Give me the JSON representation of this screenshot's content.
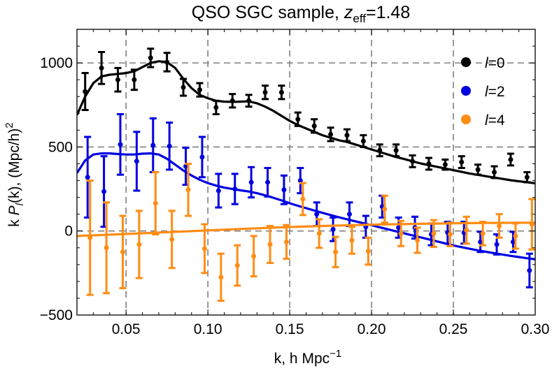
{
  "chart_data": {
    "type": "scatter",
    "title": {
      "prefix": "QSO SGC sample, ",
      "var": "z",
      "sub": "eff",
      "suffix": "=1.48"
    },
    "xlabel": {
      "main": "k, h Mpc",
      "sup": "−1"
    },
    "ylabel": {
      "k": "k ",
      "p": "P",
      "sub": "l",
      "rest": "(k), (Mpc/h)",
      "sup": "2"
    },
    "xlim": [
      0.02,
      0.3
    ],
    "ylim": [
      -500,
      1200
    ],
    "xticks": [
      "0.05",
      "0.10",
      "0.15",
      "0.20",
      "0.25",
      "0.30"
    ],
    "xtick_values": [
      0.05,
      0.1,
      0.15,
      0.2,
      0.25,
      0.3
    ],
    "yticks": [
      "−500",
      "0",
      "500",
      "1000"
    ],
    "ytick_values": [
      -500,
      0,
      500,
      1000
    ],
    "grid": "dashed at major ticks",
    "legend": {
      "placement": "top-right",
      "entries": [
        {
          "letter": "l",
          "rest": "=0",
          "color": "#000000"
        },
        {
          "letter": "l",
          "rest": "=2",
          "color": "#0000e0"
        },
        {
          "letter": "l",
          "rest": "=4",
          "color": "#ff8c14"
        }
      ]
    },
    "series": [
      {
        "color": "#000000",
        "points": [
          {
            "x": 0.025,
            "y": 830,
            "err": 110
          },
          {
            "x": 0.035,
            "y": 970,
            "err": 95
          },
          {
            "x": 0.045,
            "y": 900,
            "err": 70
          },
          {
            "x": 0.055,
            "y": 900,
            "err": 60
          },
          {
            "x": 0.065,
            "y": 1030,
            "err": 55
          },
          {
            "x": 0.075,
            "y": 1005,
            "err": 55
          },
          {
            "x": 0.085,
            "y": 855,
            "err": 50
          },
          {
            "x": 0.095,
            "y": 840,
            "err": 40
          },
          {
            "x": 0.105,
            "y": 735,
            "err": 40
          },
          {
            "x": 0.115,
            "y": 775,
            "err": 40
          },
          {
            "x": 0.125,
            "y": 775,
            "err": 35
          },
          {
            "x": 0.135,
            "y": 825,
            "err": 40
          },
          {
            "x": 0.145,
            "y": 825,
            "err": 40
          },
          {
            "x": 0.155,
            "y": 665,
            "err": 40
          },
          {
            "x": 0.165,
            "y": 625,
            "err": 40
          },
          {
            "x": 0.175,
            "y": 575,
            "err": 40
          },
          {
            "x": 0.185,
            "y": 570,
            "err": 35
          },
          {
            "x": 0.195,
            "y": 535,
            "err": 35
          },
          {
            "x": 0.205,
            "y": 480,
            "err": 35
          },
          {
            "x": 0.215,
            "y": 480,
            "err": 35
          },
          {
            "x": 0.225,
            "y": 415,
            "err": 35
          },
          {
            "x": 0.235,
            "y": 400,
            "err": 35
          },
          {
            "x": 0.245,
            "y": 395,
            "err": 30
          },
          {
            "x": 0.255,
            "y": 410,
            "err": 35
          },
          {
            "x": 0.265,
            "y": 365,
            "err": 30
          },
          {
            "x": 0.275,
            "y": 350,
            "err": 35
          },
          {
            "x": 0.285,
            "y": 425,
            "err": 35
          },
          {
            "x": 0.295,
            "y": 320,
            "err": 30
          }
        ],
        "curve": [
          [
            0.02,
            690
          ],
          [
            0.025,
            800
          ],
          [
            0.03,
            880
          ],
          [
            0.035,
            920
          ],
          [
            0.04,
            930
          ],
          [
            0.045,
            935
          ],
          [
            0.05,
            940
          ],
          [
            0.055,
            950
          ],
          [
            0.06,
            975
          ],
          [
            0.065,
            1000
          ],
          [
            0.07,
            1010
          ],
          [
            0.075,
            1005
          ],
          [
            0.08,
            970
          ],
          [
            0.085,
            905
          ],
          [
            0.09,
            850
          ],
          [
            0.095,
            810
          ],
          [
            0.1,
            790
          ],
          [
            0.105,
            775
          ],
          [
            0.11,
            770
          ],
          [
            0.115,
            768
          ],
          [
            0.12,
            770
          ],
          [
            0.125,
            772
          ],
          [
            0.13,
            760
          ],
          [
            0.135,
            740
          ],
          [
            0.14,
            715
          ],
          [
            0.145,
            685
          ],
          [
            0.15,
            655
          ],
          [
            0.155,
            630
          ],
          [
            0.16,
            610
          ],
          [
            0.165,
            590
          ],
          [
            0.17,
            570
          ],
          [
            0.175,
            555
          ],
          [
            0.18,
            540
          ],
          [
            0.185,
            530
          ],
          [
            0.19,
            515
          ],
          [
            0.195,
            500
          ],
          [
            0.2,
            485
          ],
          [
            0.205,
            470
          ],
          [
            0.21,
            455
          ],
          [
            0.215,
            440
          ],
          [
            0.22,
            428
          ],
          [
            0.225,
            415
          ],
          [
            0.23,
            402
          ],
          [
            0.235,
            392
          ],
          [
            0.24,
            382
          ],
          [
            0.245,
            372
          ],
          [
            0.25,
            362
          ],
          [
            0.255,
            352
          ],
          [
            0.26,
            342
          ],
          [
            0.265,
            334
          ],
          [
            0.27,
            326
          ],
          [
            0.275,
            318
          ],
          [
            0.28,
            310
          ],
          [
            0.285,
            302
          ],
          [
            0.29,
            296
          ],
          [
            0.295,
            290
          ],
          [
            0.3,
            284
          ]
        ]
      },
      {
        "color": "#0000e0",
        "points": [
          {
            "x": 0.025,
            "y": 320,
            "err": 240
          },
          {
            "x": 0.035,
            "y": 235,
            "err": 210
          },
          {
            "x": 0.045,
            "y": 515,
            "err": 180
          },
          {
            "x": 0.055,
            "y": 415,
            "err": 175
          },
          {
            "x": 0.065,
            "y": 510,
            "err": 160
          },
          {
            "x": 0.075,
            "y": 505,
            "err": 140
          },
          {
            "x": 0.085,
            "y": 385,
            "err": 110
          },
          {
            "x": 0.095,
            "y": 440,
            "err": 120
          },
          {
            "x": 0.105,
            "y": 240,
            "err": 100
          },
          {
            "x": 0.115,
            "y": 250,
            "err": 90
          },
          {
            "x": 0.125,
            "y": 290,
            "err": 90
          },
          {
            "x": 0.135,
            "y": 290,
            "err": 85
          },
          {
            "x": 0.145,
            "y": 245,
            "err": 85
          },
          {
            "x": 0.155,
            "y": 300,
            "err": 75
          },
          {
            "x": 0.165,
            "y": 100,
            "err": 70
          },
          {
            "x": 0.175,
            "y": 10,
            "err": 70
          },
          {
            "x": 0.185,
            "y": 100,
            "err": 70
          },
          {
            "x": 0.195,
            "y": 25,
            "err": 65
          },
          {
            "x": 0.205,
            "y": 145,
            "err": 65
          },
          {
            "x": 0.215,
            "y": 20,
            "err": 60
          },
          {
            "x": 0.225,
            "y": 20,
            "err": 65
          },
          {
            "x": 0.235,
            "y": -20,
            "err": 65
          },
          {
            "x": 0.245,
            "y": -10,
            "err": 65
          },
          {
            "x": 0.255,
            "y": -10,
            "err": 65
          },
          {
            "x": 0.265,
            "y": -65,
            "err": 60
          },
          {
            "x": 0.275,
            "y": -80,
            "err": 60
          },
          {
            "x": 0.285,
            "y": -65,
            "err": 60
          },
          {
            "x": 0.295,
            "y": -235,
            "err": 100
          }
        ],
        "curve": [
          [
            0.02,
            345
          ],
          [
            0.025,
            420
          ],
          [
            0.03,
            455
          ],
          [
            0.035,
            462
          ],
          [
            0.04,
            462
          ],
          [
            0.045,
            458
          ],
          [
            0.05,
            455
          ],
          [
            0.055,
            455
          ],
          [
            0.06,
            460
          ],
          [
            0.065,
            462
          ],
          [
            0.07,
            455
          ],
          [
            0.075,
            430
          ],
          [
            0.08,
            395
          ],
          [
            0.085,
            360
          ],
          [
            0.09,
            330
          ],
          [
            0.095,
            305
          ],
          [
            0.1,
            285
          ],
          [
            0.105,
            270
          ],
          [
            0.11,
            258
          ],
          [
            0.115,
            250
          ],
          [
            0.12,
            242
          ],
          [
            0.125,
            235
          ],
          [
            0.13,
            225
          ],
          [
            0.135,
            212
          ],
          [
            0.14,
            198
          ],
          [
            0.145,
            182
          ],
          [
            0.15,
            165
          ],
          [
            0.155,
            150
          ],
          [
            0.16,
            136
          ],
          [
            0.165,
            122
          ],
          [
            0.17,
            108
          ],
          [
            0.175,
            95
          ],
          [
            0.18,
            82
          ],
          [
            0.185,
            70
          ],
          [
            0.19,
            58
          ],
          [
            0.195,
            46
          ],
          [
            0.2,
            34
          ],
          [
            0.205,
            22
          ],
          [
            0.21,
            10
          ],
          [
            0.215,
            -2
          ],
          [
            0.22,
            -14
          ],
          [
            0.225,
            -26
          ],
          [
            0.23,
            -38
          ],
          [
            0.235,
            -50
          ],
          [
            0.24,
            -62
          ],
          [
            0.245,
            -74
          ],
          [
            0.25,
            -86
          ],
          [
            0.255,
            -96
          ],
          [
            0.26,
            -106
          ],
          [
            0.265,
            -115
          ],
          [
            0.27,
            -124
          ],
          [
            0.275,
            -132
          ],
          [
            0.28,
            -140
          ],
          [
            0.285,
            -148
          ],
          [
            0.29,
            -155
          ],
          [
            0.295,
            -162
          ],
          [
            0.3,
            -168
          ]
        ]
      },
      {
        "color": "#ff8c14",
        "points": [
          {
            "x": 0.025,
            "y": -40,
            "err": 340
          },
          {
            "x": 0.035,
            "y": -100,
            "err": 270
          },
          {
            "x": 0.045,
            "y": -125,
            "err": 215
          },
          {
            "x": 0.055,
            "y": -80,
            "err": 200
          },
          {
            "x": 0.065,
            "y": 165,
            "err": 185
          },
          {
            "x": 0.075,
            "y": -50,
            "err": 170
          },
          {
            "x": 0.085,
            "y": 245,
            "err": 155
          },
          {
            "x": 0.095,
            "y": -105,
            "err": 145
          },
          {
            "x": 0.105,
            "y": -275,
            "err": 140
          },
          {
            "x": 0.115,
            "y": -205,
            "err": 120
          },
          {
            "x": 0.125,
            "y": -150,
            "err": 120
          },
          {
            "x": 0.135,
            "y": -80,
            "err": 110
          },
          {
            "x": 0.145,
            "y": -65,
            "err": 100
          },
          {
            "x": 0.155,
            "y": 190,
            "err": 95
          },
          {
            "x": 0.165,
            "y": -15,
            "err": 85
          },
          {
            "x": 0.175,
            "y": -125,
            "err": 90
          },
          {
            "x": 0.185,
            "y": -55,
            "err": 80
          },
          {
            "x": 0.195,
            "y": -120,
            "err": 80
          },
          {
            "x": 0.205,
            "y": 130,
            "err": 80
          },
          {
            "x": 0.215,
            "y": -15,
            "err": 75
          },
          {
            "x": 0.225,
            "y": -55,
            "err": 75
          },
          {
            "x": 0.235,
            "y": -15,
            "err": 80
          },
          {
            "x": 0.245,
            "y": -20,
            "err": 70
          },
          {
            "x": 0.255,
            "y": 5,
            "err": 80
          },
          {
            "x": 0.265,
            "y": -15,
            "err": 70
          },
          {
            "x": 0.275,
            "y": 30,
            "err": 70
          },
          {
            "x": 0.285,
            "y": -30,
            "err": 75
          },
          {
            "x": 0.295,
            "y": 40,
            "err": 150
          }
        ],
        "curve": [
          [
            0.02,
            -30
          ],
          [
            0.05,
            -18
          ],
          [
            0.08,
            -5
          ],
          [
            0.11,
            8
          ],
          [
            0.14,
            20
          ],
          [
            0.17,
            30
          ],
          [
            0.2,
            38
          ],
          [
            0.23,
            43
          ],
          [
            0.26,
            47
          ],
          [
            0.3,
            50
          ]
        ]
      }
    ]
  }
}
